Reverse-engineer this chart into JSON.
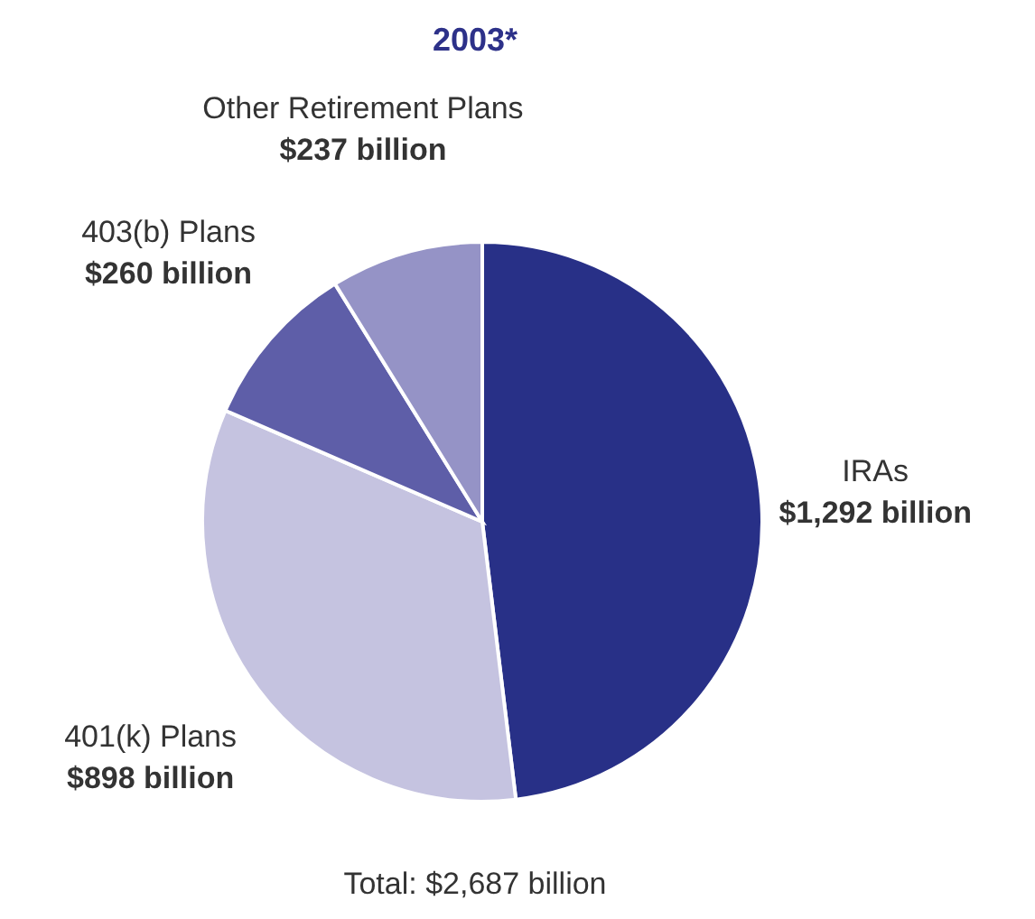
{
  "chart_data": {
    "type": "pie",
    "title": "2003*",
    "categories": [
      "IRAs",
      "401(k) Plans",
      "403(b) Plans",
      "Other Retirement Plans"
    ],
    "values": [
      1292,
      898,
      260,
      237
    ],
    "value_labels": [
      "$1,292 billion",
      "$898 billion",
      "$260 billion",
      "$237 billion"
    ],
    "colors": [
      "#283087",
      "#c5c3e0",
      "#5e5ea8",
      "#9593c6"
    ],
    "annotations": [
      "Total: $2,687 billion"
    ],
    "legend": false
  }
}
